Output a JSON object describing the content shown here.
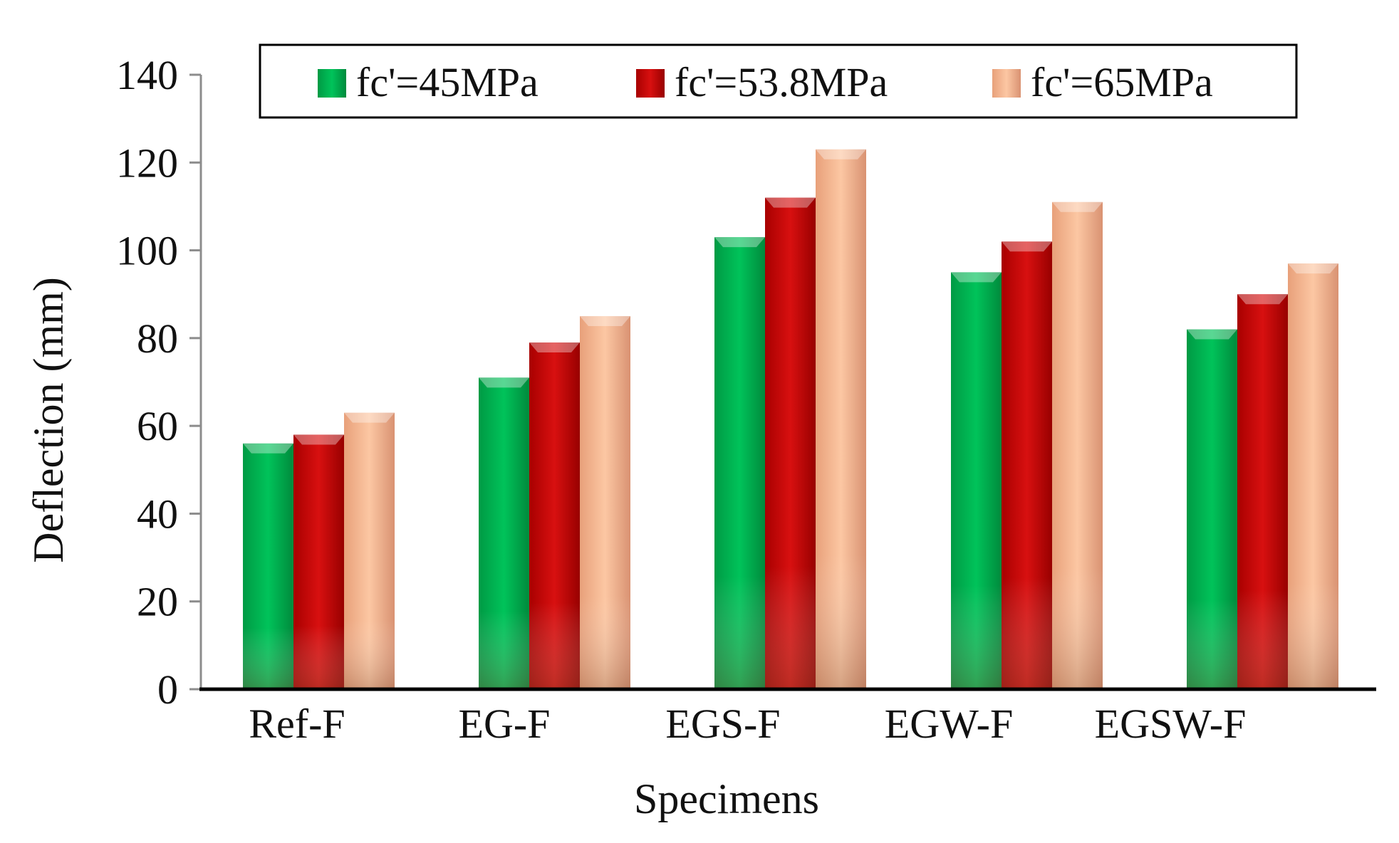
{
  "chart_data": {
    "type": "bar",
    "title": "",
    "xlabel": "Specimens",
    "ylabel": "Deflection (mm)",
    "categories": [
      "Ref-F",
      "EG-F",
      "EGS-F",
      "EGW-F",
      "EGSW-F"
    ],
    "ylim": [
      0,
      140
    ],
    "yticks": [
      0,
      20,
      40,
      60,
      80,
      100,
      120,
      140
    ],
    "grid": false,
    "legend_position": "top",
    "series": [
      {
        "name": "fc'=45MPa",
        "color": "#00b050",
        "values": [
          56,
          71,
          103,
          95,
          82
        ]
      },
      {
        "name": "fc'=53.8MPa",
        "color": "#c00000",
        "values": [
          58,
          79,
          112,
          102,
          90
        ]
      },
      {
        "name": "fc'=65MPa",
        "color": "#f4b183",
        "values": [
          63,
          85,
          123,
          111,
          97
        ]
      }
    ]
  }
}
